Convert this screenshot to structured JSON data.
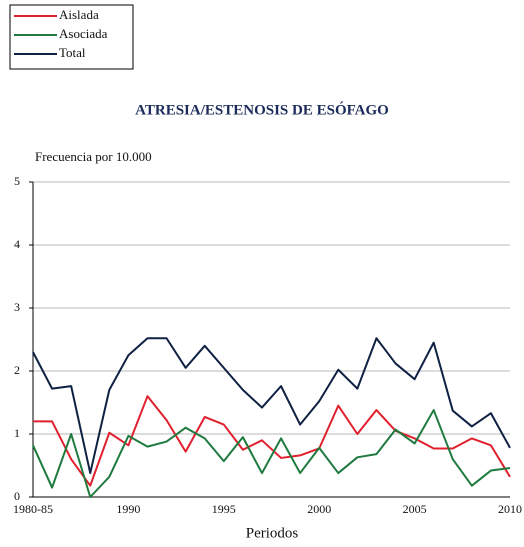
{
  "chart_data": {
    "type": "line",
    "title": "ATRESIA/ESTENOSIS DE ESÓFAGO",
    "y_label": "Frecuencia por 10.000",
    "x_label": "Periodos",
    "categories": [
      "1980-85",
      null,
      null,
      null,
      null,
      "1990",
      null,
      null,
      null,
      null,
      "1995",
      null,
      null,
      null,
      null,
      "2000",
      null,
      null,
      null,
      null,
      "2005",
      null,
      null,
      null,
      null,
      "2010"
    ],
    "series": [
      {
        "name": "Aislada",
        "color": "#e0202e",
        "values": [
          1.2,
          1.2,
          0.6,
          0.18,
          1.02,
          0.82,
          1.6,
          1.22,
          0.72,
          1.27,
          1.15,
          0.75,
          0.9,
          0.62,
          0.66,
          0.77,
          1.45,
          1.0,
          1.38,
          1.05,
          0.93,
          0.77,
          0.77,
          0.93,
          0.82,
          0.32
        ]
      },
      {
        "name": "Asociada",
        "color": "#1e7a3e",
        "values": [
          0.82,
          0.15,
          1.0,
          0.0,
          0.32,
          0.97,
          0.8,
          0.88,
          1.1,
          0.93,
          0.57,
          0.95,
          0.38,
          0.93,
          0.38,
          0.78,
          0.38,
          0.63,
          0.68,
          1.07,
          0.85,
          1.38,
          0.6,
          0.18,
          0.42,
          0.46
        ]
      },
      {
        "name": "Total",
        "color": "#0f2143",
        "values": [
          2.3,
          1.72,
          1.76,
          0.38,
          1.7,
          2.25,
          2.52,
          2.52,
          2.05,
          2.4,
          2.05,
          1.7,
          1.42,
          1.76,
          1.15,
          1.52,
          2.02,
          1.72,
          2.52,
          2.12,
          1.87,
          2.45,
          1.37,
          1.12,
          1.33,
          0.78
        ]
      }
    ],
    "ylim": [
      0,
      5
    ],
    "yticks": [
      0,
      1,
      2,
      3,
      4,
      5
    ],
    "grid": true,
    "legend": "top-left"
  }
}
